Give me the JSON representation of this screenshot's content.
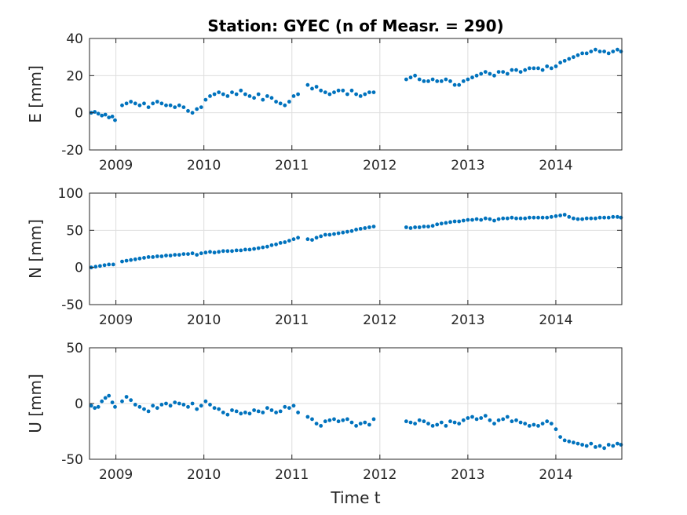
{
  "chart_data": {
    "type": "scatter",
    "title": "Station: GYEC (n of Measr. = 290)",
    "xlabel": "Time t",
    "xlim": [
      2008.7,
      2014.75
    ],
    "xticks": [
      2009,
      2010,
      2011,
      2012,
      2013,
      2014
    ],
    "grid": true,
    "marker_color": "#0072BD",
    "panels": [
      {
        "ylabel": "E [mm]",
        "ylim": [
          -20,
          40
        ],
        "yticks": [
          -20,
          0,
          20,
          40
        ],
        "series": [
          {
            "x": [
              2008.72,
              2008.76,
              2008.8,
              2008.84,
              2008.88,
              2008.92,
              2008.96,
              2008.99,
              2009.07,
              2009.12,
              2009.17,
              2009.22,
              2009.27,
              2009.32,
              2009.37,
              2009.42,
              2009.47,
              2009.52,
              2009.57,
              2009.62,
              2009.67,
              2009.72,
              2009.77,
              2009.82,
              2009.87,
              2009.92,
              2009.97,
              2010.02,
              2010.07,
              2010.12,
              2010.17,
              2010.22,
              2010.27,
              2010.32,
              2010.37,
              2010.42,
              2010.47,
              2010.52,
              2010.57,
              2010.62,
              2010.67,
              2010.72,
              2010.77,
              2010.82,
              2010.87,
              2010.92,
              2010.97,
              2011.02,
              2011.07,
              2011.18,
              2011.23,
              2011.28,
              2011.33,
              2011.38,
              2011.43,
              2011.48,
              2011.53,
              2011.58,
              2011.63,
              2011.68,
              2011.73,
              2011.78,
              2011.83,
              2011.88,
              2011.93,
              2012.3,
              2012.35,
              2012.4,
              2012.45,
              2012.5,
              2012.55,
              2012.6,
              2012.65,
              2012.7,
              2012.75,
              2012.8,
              2012.85,
              2012.9,
              2012.95,
              2013.0,
              2013.05,
              2013.1,
              2013.15,
              2013.2,
              2013.25,
              2013.3,
              2013.35,
              2013.4,
              2013.45,
              2013.5,
              2013.55,
              2013.6,
              2013.65,
              2013.7,
              2013.75,
              2013.8,
              2013.85,
              2013.9,
              2013.95,
              2014.0,
              2014.05,
              2014.1,
              2014.15,
              2014.2,
              2014.25,
              2014.3,
              2014.35,
              2014.4,
              2014.45,
              2014.5,
              2014.55,
              2014.6,
              2014.65,
              2014.7,
              2014.74
            ],
            "y": [
              0,
              0.5,
              -0.5,
              -1.5,
              -1,
              -2.5,
              -2,
              -4,
              4,
              5,
              6,
              5,
              4,
              5,
              3,
              5,
              6,
              5,
              4,
              4,
              3,
              4,
              3,
              1,
              0,
              2,
              3,
              7,
              9,
              10,
              11,
              10,
              9,
              11,
              10,
              12,
              10,
              9,
              8,
              10,
              7,
              9,
              8,
              6,
              5,
              4,
              6,
              9,
              10,
              15,
              13,
              14,
              12,
              11,
              10,
              11,
              12,
              12,
              10,
              12,
              10,
              9,
              10,
              11,
              11,
              18,
              19,
              20,
              18,
              17,
              17,
              18,
              17,
              17,
              18,
              17,
              15,
              15,
              17,
              18,
              19,
              20,
              21,
              22,
              21,
              20,
              22,
              22,
              21,
              23,
              23,
              22,
              23,
              24,
              24,
              24,
              23,
              25,
              24,
              25,
              27,
              28,
              29,
              30,
              31,
              32,
              32,
              33,
              34,
              33,
              33,
              32,
              33,
              34,
              33
            ]
          }
        ]
      },
      {
        "ylabel": "N [mm]",
        "ylim": [
          -50,
          100
        ],
        "yticks": [
          -50,
          0,
          50,
          100
        ],
        "series": [
          {
            "x": [
              2008.72,
              2008.77,
              2008.82,
              2008.87,
              2008.92,
              2008.97,
              2009.07,
              2009.12,
              2009.17,
              2009.22,
              2009.27,
              2009.32,
              2009.37,
              2009.42,
              2009.47,
              2009.52,
              2009.57,
              2009.62,
              2009.67,
              2009.72,
              2009.77,
              2009.82,
              2009.87,
              2009.92,
              2009.97,
              2010.02,
              2010.07,
              2010.12,
              2010.17,
              2010.22,
              2010.27,
              2010.32,
              2010.37,
              2010.42,
              2010.47,
              2010.52,
              2010.57,
              2010.62,
              2010.67,
              2010.72,
              2010.77,
              2010.82,
              2010.87,
              2010.92,
              2010.97,
              2011.02,
              2011.07,
              2011.18,
              2011.23,
              2011.28,
              2011.33,
              2011.38,
              2011.43,
              2011.48,
              2011.53,
              2011.58,
              2011.63,
              2011.68,
              2011.73,
              2011.78,
              2011.83,
              2011.88,
              2011.93,
              2012.3,
              2012.35,
              2012.4,
              2012.45,
              2012.5,
              2012.55,
              2012.6,
              2012.65,
              2012.7,
              2012.75,
              2012.8,
              2012.85,
              2012.9,
              2012.95,
              2013.0,
              2013.05,
              2013.1,
              2013.15,
              2013.2,
              2013.25,
              2013.3,
              2013.35,
              2013.4,
              2013.45,
              2013.5,
              2013.55,
              2013.6,
              2013.65,
              2013.7,
              2013.75,
              2013.8,
              2013.85,
              2013.9,
              2013.95,
              2014.0,
              2014.05,
              2014.1,
              2014.15,
              2014.2,
              2014.25,
              2014.3,
              2014.35,
              2014.4,
              2014.45,
              2014.5,
              2014.55,
              2014.6,
              2014.65,
              2014.7,
              2014.74
            ],
            "y": [
              0,
              1,
              2,
              3,
              4,
              4,
              8,
              9,
              10,
              11,
              12,
              13,
              14,
              14,
              15,
              15,
              16,
              16,
              17,
              17,
              18,
              18,
              19,
              17,
              19,
              20,
              21,
              20,
              21,
              22,
              22,
              22,
              23,
              23,
              24,
              24,
              25,
              26,
              27,
              28,
              30,
              31,
              33,
              34,
              36,
              38,
              40,
              38,
              37,
              40,
              42,
              44,
              44,
              45,
              46,
              47,
              48,
              49,
              51,
              52,
              53,
              54,
              55,
              54,
              53,
              54,
              54,
              55,
              55,
              56,
              58,
              59,
              60,
              61,
              62,
              62,
              63,
              64,
              64,
              65,
              64,
              66,
              65,
              63,
              65,
              66,
              66,
              67,
              66,
              66,
              66,
              67,
              67,
              67,
              67,
              67,
              68,
              69,
              70,
              71,
              68,
              66,
              65,
              65,
              66,
              66,
              66,
              67,
              67,
              67,
              68,
              68,
              67
            ]
          }
        ]
      },
      {
        "ylabel": "U [mm]",
        "ylim": [
          -50,
          50
        ],
        "yticks": [
          -50,
          0,
          50
        ],
        "series": [
          {
            "x": [
              2008.72,
              2008.76,
              2008.8,
              2008.84,
              2008.88,
              2008.92,
              2008.96,
              2008.99,
              2009.07,
              2009.12,
              2009.17,
              2009.22,
              2009.27,
              2009.32,
              2009.37,
              2009.42,
              2009.47,
              2009.52,
              2009.57,
              2009.62,
              2009.67,
              2009.72,
              2009.77,
              2009.82,
              2009.87,
              2009.92,
              2009.97,
              2010.02,
              2010.07,
              2010.12,
              2010.17,
              2010.22,
              2010.27,
              2010.32,
              2010.37,
              2010.42,
              2010.47,
              2010.52,
              2010.57,
              2010.62,
              2010.67,
              2010.72,
              2010.77,
              2010.82,
              2010.87,
              2010.92,
              2010.97,
              2011.02,
              2011.07,
              2011.18,
              2011.23,
              2011.28,
              2011.33,
              2011.38,
              2011.43,
              2011.48,
              2011.53,
              2011.58,
              2011.63,
              2011.68,
              2011.73,
              2011.78,
              2011.83,
              2011.88,
              2011.93,
              2012.3,
              2012.35,
              2012.4,
              2012.45,
              2012.5,
              2012.55,
              2012.6,
              2012.65,
              2012.7,
              2012.75,
              2012.8,
              2012.85,
              2012.9,
              2012.95,
              2013.0,
              2013.05,
              2013.1,
              2013.15,
              2013.2,
              2013.25,
              2013.3,
              2013.35,
              2013.4,
              2013.45,
              2013.5,
              2013.55,
              2013.6,
              2013.65,
              2013.7,
              2013.75,
              2013.8,
              2013.85,
              2013.9,
              2013.95,
              2014.0,
              2014.05,
              2014.1,
              2014.15,
              2014.2,
              2014.25,
              2014.3,
              2014.35,
              2014.4,
              2014.45,
              2014.5,
              2014.55,
              2014.6,
              2014.65,
              2014.7,
              2014.74
            ],
            "y": [
              -2,
              -4,
              -3,
              2,
              5,
              7,
              1,
              -3,
              2,
              6,
              3,
              -1,
              -3,
              -5,
              -7,
              -2,
              -4,
              -1,
              0,
              -2,
              1,
              0,
              -1,
              -3,
              0,
              -5,
              -2,
              2,
              -1,
              -4,
              -5,
              -8,
              -10,
              -6,
              -7,
              -9,
              -8,
              -9,
              -6,
              -7,
              -8,
              -4,
              -6,
              -8,
              -7,
              -3,
              -4,
              -2,
              -8,
              -12,
              -14,
              -18,
              -20,
              -16,
              -15,
              -14,
              -16,
              -15,
              -14,
              -17,
              -20,
              -18,
              -17,
              -19,
              -14,
              -16,
              -17,
              -18,
              -15,
              -16,
              -18,
              -20,
              -19,
              -17,
              -20,
              -16,
              -17,
              -18,
              -15,
              -13,
              -12,
              -14,
              -13,
              -11,
              -15,
              -18,
              -15,
              -14,
              -12,
              -16,
              -15,
              -17,
              -18,
              -20,
              -19,
              -20,
              -18,
              -16,
              -18,
              -23,
              -30,
              -33,
              -34,
              -35,
              -36,
              -37,
              -38,
              -36,
              -39,
              -38,
              -40,
              -37,
              -38,
              -36,
              -37
            ]
          }
        ]
      }
    ]
  }
}
